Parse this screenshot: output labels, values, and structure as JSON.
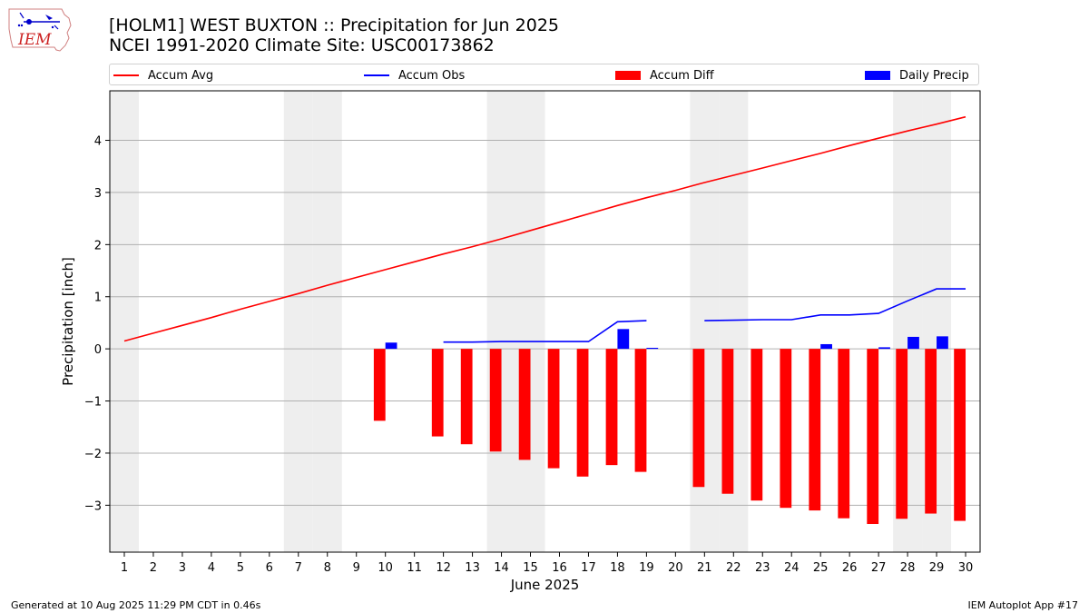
{
  "header": {
    "logo_text": "IEM",
    "title_line1": "[HOLM1] WEST BUXTON :: Precipitation for Jun 2025",
    "title_line2": "NCEI 1991-2020 Climate Site: USC00173862"
  },
  "legend": {
    "accum_avg": "Accum Avg",
    "accum_obs": "Accum Obs",
    "accum_diff": "Accum Diff",
    "daily_precip": "Daily Precip"
  },
  "colors": {
    "avg_line": "#ff0000",
    "obs_line": "#0000ff",
    "diff_bar": "#ff0000",
    "precip_bar": "#0000ff",
    "weekend_shade": "#eeeeee",
    "grid": "#b0b0b0"
  },
  "footer": {
    "left": "Generated at 10 Aug 2025 11:29 PM CDT in 0.46s",
    "right": "IEM Autoplot App #17"
  },
  "chart_data": {
    "type": "bar",
    "xlabel": "June 2025",
    "ylabel": "Precipitation [inch]",
    "grid": true,
    "legend_position": "top",
    "xlim": [
      0.5,
      30.5
    ],
    "ylim": [
      -3.9,
      4.95
    ],
    "x": [
      1,
      2,
      3,
      4,
      5,
      6,
      7,
      8,
      9,
      10,
      11,
      12,
      13,
      14,
      15,
      16,
      17,
      18,
      19,
      20,
      21,
      22,
      23,
      24,
      25,
      26,
      27,
      28,
      29,
      30
    ],
    "x_ticks": [
      "1",
      "2",
      "3",
      "4",
      "5",
      "6",
      "7",
      "8",
      "9",
      "10",
      "11",
      "12",
      "13",
      "14",
      "15",
      "16",
      "17",
      "18",
      "19",
      "20",
      "21",
      "22",
      "23",
      "24",
      "25",
      "26",
      "27",
      "28",
      "29",
      "30"
    ],
    "y_ticks": [
      "−3",
      "−2",
      "−1",
      "0",
      "1",
      "2",
      "3",
      "4"
    ],
    "y_tick_values": [
      -3,
      -2,
      -1,
      0,
      1,
      2,
      3,
      4
    ],
    "weekend_days": [
      1,
      7,
      8,
      14,
      15,
      21,
      22,
      28,
      29
    ],
    "series": [
      {
        "name": "Accum Avg",
        "kind": "line",
        "values": [
          0.15,
          0.3,
          0.45,
          0.6,
          0.76,
          0.91,
          1.06,
          1.22,
          1.37,
          1.52,
          1.67,
          1.82,
          1.96,
          2.11,
          2.27,
          2.43,
          2.59,
          2.75,
          2.9,
          3.04,
          3.19,
          3.33,
          3.47,
          3.61,
          3.75,
          3.9,
          4.04,
          4.18,
          4.31,
          4.45
        ]
      },
      {
        "name": "Accum Obs",
        "kind": "line",
        "values": [
          null,
          null,
          null,
          null,
          null,
          null,
          null,
          null,
          null,
          null,
          null,
          0.13,
          0.13,
          0.14,
          0.14,
          0.14,
          0.14,
          0.52,
          0.54,
          null,
          0.54,
          0.55,
          0.56,
          0.56,
          0.65,
          0.65,
          0.68,
          0.92,
          1.15,
          1.15
        ]
      },
      {
        "name": "Accum Diff",
        "kind": "bar",
        "values": [
          null,
          null,
          null,
          null,
          null,
          null,
          null,
          null,
          null,
          -1.38,
          null,
          -1.68,
          -1.83,
          -1.97,
          -2.13,
          -2.29,
          -2.45,
          -2.23,
          -2.36,
          null,
          -2.65,
          -2.78,
          -2.91,
          -3.05,
          -3.1,
          -3.25,
          -3.36,
          -3.26,
          -3.16,
          -3.3
        ]
      },
      {
        "name": "Daily Precip",
        "kind": "bar",
        "values": [
          null,
          null,
          null,
          null,
          null,
          null,
          null,
          null,
          null,
          0.12,
          null,
          null,
          null,
          null,
          null,
          null,
          null,
          0.38,
          0.02,
          null,
          null,
          null,
          null,
          null,
          0.09,
          null,
          0.03,
          0.23,
          0.24,
          null
        ]
      }
    ]
  }
}
